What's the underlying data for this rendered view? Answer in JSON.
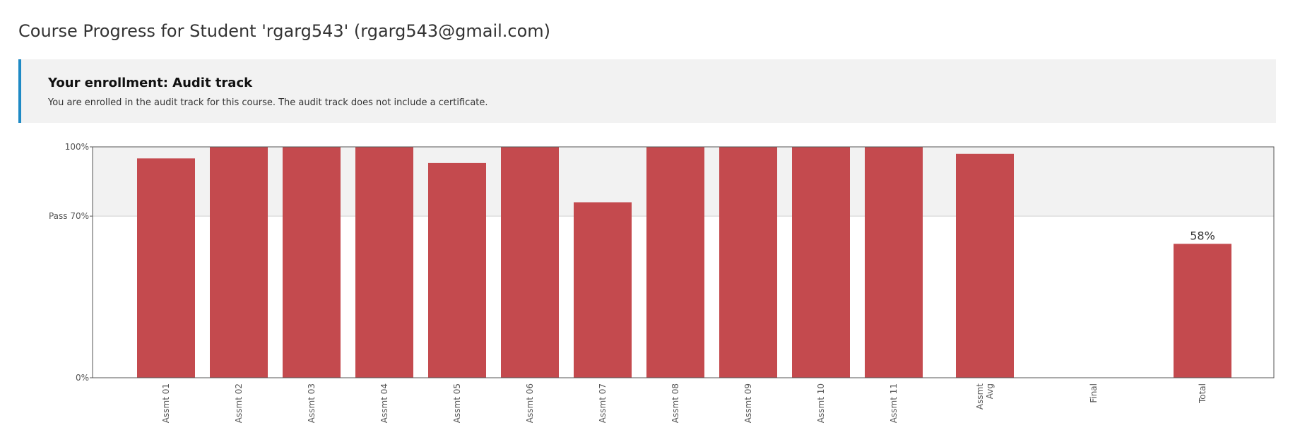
{
  "page": {
    "title": "Course Progress for Student 'rgarg543' (rgarg543@gmail.com)"
  },
  "enrollment": {
    "heading": "Your enrollment: Audit track",
    "message": "You are enrolled in the audit track for this course. The audit track does not include a certificate."
  },
  "colors": {
    "bar": "#c44a4e",
    "pass_zone": "#f2f2f2",
    "accent": "#1f8ac5"
  },
  "chart_data": {
    "type": "bar",
    "ylim": [
      0,
      100
    ],
    "y_ticks": [
      {
        "value": 100,
        "label": "100%"
      },
      {
        "value": 70,
        "label": "Pass 70%"
      },
      {
        "value": 0,
        "label": "0%"
      }
    ],
    "pass_threshold": 70,
    "categories": [
      {
        "label": "Assmt 01",
        "value": 95
      },
      {
        "label": "Assmt 02",
        "value": 100
      },
      {
        "label": "Assmt 03",
        "value": 100
      },
      {
        "label": "Assmt 04",
        "value": 100
      },
      {
        "label": "Assmt 05",
        "value": 93
      },
      {
        "label": "Assmt 06",
        "value": 100
      },
      {
        "label": "Assmt 07",
        "value": 76
      },
      {
        "label": "Assmt 08",
        "value": 100
      },
      {
        "label": "Assmt 09",
        "value": 100
      },
      {
        "label": "Assmt 10",
        "value": 100
      },
      {
        "label": "Assmt 11",
        "value": 100
      },
      {
        "label": "Assmt\nAvg",
        "value": 97
      },
      {
        "label": "Final",
        "value": 0
      },
      {
        "label": "Total",
        "value": 58,
        "data_label": "58%"
      }
    ]
  }
}
